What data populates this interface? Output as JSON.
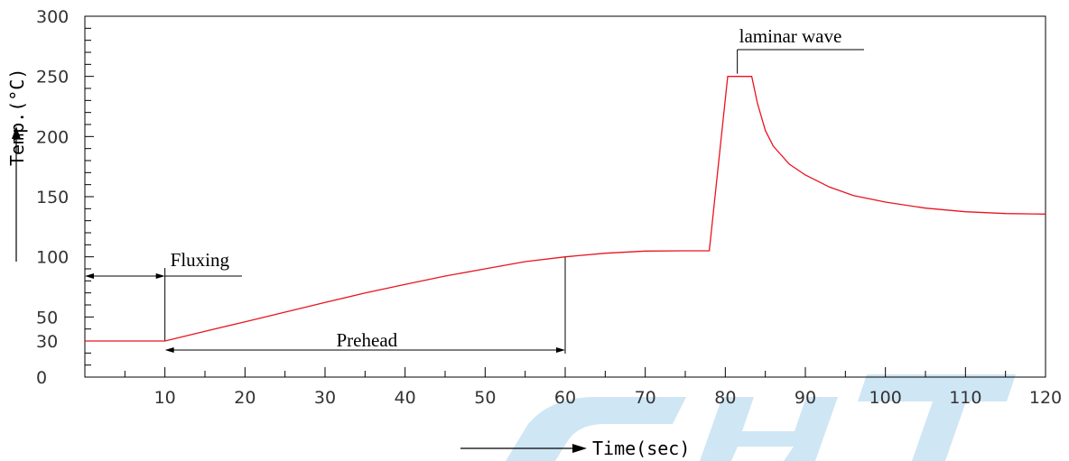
{
  "chart_data": {
    "type": "line",
    "title": "",
    "xlabel": "Time(sec)",
    "ylabel": "Temp.(°C)",
    "xlim": [
      0,
      120
    ],
    "ylim": [
      0,
      300
    ],
    "x_ticks": [
      10,
      20,
      30,
      40,
      50,
      60,
      70,
      80,
      90,
      100,
      110,
      120
    ],
    "y_ticks": [
      0,
      30,
      50,
      100,
      150,
      200,
      250,
      300
    ],
    "grid": false,
    "line_color": "#e8141e",
    "watermark_color": "#cfe6f5",
    "series": [
      {
        "x": [
          0,
          10,
          15,
          20,
          25,
          30,
          35,
          40,
          45,
          50,
          55,
          60,
          65,
          70,
          75,
          78,
          80.3,
          81.5,
          83.3,
          84,
          85,
          86,
          88,
          90,
          93,
          96,
          100,
          105,
          110,
          115,
          120
        ],
        "values": [
          30,
          30,
          38,
          46,
          54,
          62,
          70,
          77,
          84,
          90,
          96,
          100,
          103,
          104.8,
          105,
          105,
          250,
          250,
          250,
          228,
          205,
          192,
          177,
          168,
          158,
          151,
          145.5,
          140.5,
          137.5,
          136,
          135.5
        ]
      }
    ],
    "annotations": {
      "fluxing": {
        "label": "Fluxing",
        "x_start": 0,
        "x_end": 10
      },
      "prehead": {
        "label": "Prehead",
        "x_start": 10,
        "x_end": 60
      },
      "laminar_wave": {
        "label": "laminar wave",
        "x_start": 81.5,
        "x_end": 83.3
      }
    }
  }
}
